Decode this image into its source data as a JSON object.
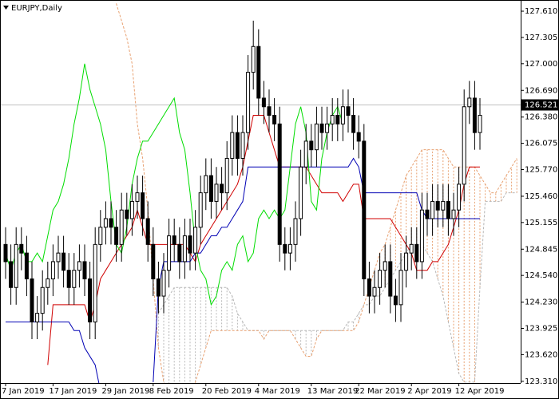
{
  "chart_data": {
    "type": "candlestick",
    "title": "EURJPY,Daily",
    "ylim": [
      123.29,
      127.74
    ],
    "yticks": [
      {
        "value": 127.61,
        "label": "127.610"
      },
      127.305,
      {
        "value": 127.0,
        "label": "127.000"
      },
      {
        "value": 126.69,
        "label": "126.690"
      },
      {
        "value": 126.38,
        "label": "126.380"
      },
      126.075,
      {
        "value": 125.77,
        "label": "125.770"
      },
      {
        "value": 125.46,
        "label": "125.460"
      },
      125.155,
      124.845,
      {
        "value": 124.54,
        "label": "124.540"
      },
      {
        "value": 124.23,
        "label": "124.230"
      },
      123.925,
      {
        "value": 123.62,
        "label": "123.620"
      },
      {
        "value": 123.31,
        "label": "123.310"
      }
    ],
    "xticks": [
      {
        "value": 0,
        "label": "7 Jan 2019"
      },
      {
        "value": 9,
        "label": "17 Jan 2019"
      },
      {
        "value": 19,
        "label": "29 Jan 2019"
      },
      {
        "value": 28,
        "label": "8 Feb 2019"
      },
      {
        "value": 38,
        "label": "20 Feb 2019"
      },
      {
        "value": 48,
        "label": "4 Mar 2019"
      },
      {
        "value": 58,
        "label": "13 Mar 2019"
      },
      {
        "value": 67,
        "label": "22 Mar 2019"
      },
      {
        "value": 77,
        "label": "2 Apr 2019"
      },
      {
        "value": 86,
        "label": "12 Apr 2019"
      }
    ],
    "last_price": 126.521,
    "color_up": "#ffffff",
    "color_down": "#000000",
    "candles": {
      "open": [
        124.9,
        124.7,
        124.4,
        124.9,
        124.8,
        124.5,
        124.0,
        124.1,
        124.4,
        124.5,
        124.7,
        124.8,
        124.6,
        124.4,
        124.6,
        124.7,
        124.5,
        124.0,
        124.9,
        125.1,
        125.2,
        125.1,
        124.9,
        125.3,
        125.2,
        125.4,
        125.5,
        125.2,
        124.9,
        124.5,
        124.3,
        124.6,
        125.0,
        124.9,
        124.7,
        125.0,
        124.8,
        125.1,
        125.5,
        125.7,
        125.4,
        125.6,
        125.5,
        125.9,
        126.2,
        125.9,
        126.2,
        126.9,
        127.2,
        126.6,
        126.5,
        126.4,
        126.3,
        124.9,
        124.8,
        124.9,
        125.2,
        125.8,
        126.1,
        126.0,
        126.3,
        126.2,
        126.3,
        126.4,
        126.3,
        126.5,
        126.4,
        126.2,
        126.1,
        124.5,
        124.3,
        124.4,
        124.6,
        124.7,
        124.3,
        124.2,
        124.6,
        124.8,
        124.9,
        124.7,
        125.3,
        125.2,
        125.4,
        125.3,
        125.4,
        125.2,
        125.3,
        125.6,
        126.5,
        126.6,
        126.2
      ],
      "high": [
        125.1,
        124.9,
        125.1,
        125.1,
        125.0,
        124.7,
        124.3,
        124.6,
        124.7,
        124.9,
        125.0,
        125.0,
        124.8,
        124.8,
        124.9,
        124.9,
        124.7,
        125.1,
        125.3,
        125.4,
        125.4,
        125.3,
        125.5,
        125.5,
        125.6,
        125.7,
        125.7,
        125.4,
        125.1,
        124.7,
        124.8,
        125.2,
        125.2,
        125.1,
        125.2,
        125.2,
        125.3,
        125.7,
        125.9,
        125.9,
        125.8,
        125.8,
        126.1,
        126.4,
        126.4,
        126.4,
        127.1,
        127.5,
        127.4,
        126.8,
        126.7,
        126.6,
        126.5,
        125.1,
        125.1,
        125.4,
        126.0,
        126.3,
        126.3,
        126.5,
        126.5,
        126.5,
        126.6,
        126.6,
        126.7,
        126.7,
        126.6,
        126.4,
        126.3,
        124.7,
        124.6,
        124.8,
        124.9,
        124.9,
        124.5,
        124.8,
        125.0,
        125.1,
        125.1,
        125.5,
        125.5,
        125.6,
        125.6,
        125.6,
        125.6,
        125.5,
        125.8,
        126.7,
        126.8,
        126.8,
        126.6
      ],
      "low": [
        124.5,
        124.2,
        124.2,
        124.6,
        124.3,
        123.8,
        123.8,
        123.9,
        124.2,
        124.3,
        124.5,
        124.4,
        124.2,
        124.2,
        124.4,
        124.3,
        123.8,
        123.8,
        124.7,
        124.9,
        124.9,
        124.7,
        124.7,
        125.0,
        125.0,
        125.2,
        125.0,
        124.7,
        124.3,
        124.1,
        124.1,
        124.4,
        124.7,
        124.5,
        124.5,
        124.6,
        124.6,
        124.9,
        125.3,
        125.2,
        125.2,
        125.3,
        125.3,
        125.7,
        125.7,
        125.7,
        126.0,
        126.7,
        126.4,
        126.3,
        126.2,
        126.1,
        124.7,
        124.6,
        124.6,
        124.7,
        125.0,
        125.6,
        125.8,
        125.8,
        126.0,
        126.0,
        126.1,
        126.1,
        126.1,
        126.2,
        126.0,
        125.9,
        124.3,
        124.1,
        124.1,
        124.2,
        124.4,
        124.1,
        124.0,
        124.0,
        124.4,
        124.6,
        124.5,
        124.5,
        125.0,
        125.0,
        125.1,
        125.1,
        125.0,
        125.0,
        125.1,
        125.4,
        126.3,
        126.0,
        126.0
      ],
      "close": [
        124.7,
        124.4,
        124.9,
        124.8,
        124.5,
        124.0,
        124.1,
        124.4,
        124.5,
        124.7,
        124.8,
        124.6,
        124.4,
        124.6,
        124.7,
        124.5,
        124.0,
        124.9,
        125.1,
        125.2,
        125.1,
        124.9,
        125.3,
        125.2,
        125.4,
        125.5,
        125.2,
        124.9,
        124.5,
        124.3,
        124.6,
        125.0,
        124.9,
        124.7,
        125.0,
        124.8,
        125.1,
        125.5,
        125.7,
        125.4,
        125.6,
        125.5,
        125.9,
        126.2,
        125.9,
        126.2,
        126.9,
        127.2,
        126.6,
        126.5,
        126.4,
        126.3,
        124.9,
        124.8,
        124.9,
        125.2,
        125.8,
        126.1,
        126.0,
        126.3,
        126.2,
        126.3,
        126.4,
        126.3,
        126.5,
        126.4,
        126.2,
        126.1,
        124.5,
        124.3,
        124.4,
        124.6,
        124.7,
        124.3,
        124.2,
        124.6,
        124.8,
        124.9,
        124.7,
        125.3,
        125.2,
        125.4,
        125.3,
        125.4,
        125.2,
        125.3,
        125.6,
        126.5,
        126.6,
        126.2,
        126.4
      ]
    },
    "cloud": {
      "span_a": {
        "color": "#b8b8b8",
        "values": [
          null,
          null,
          null,
          null,
          null,
          null,
          null,
          null,
          null,
          null,
          null,
          null,
          null,
          null,
          null,
          null,
          null,
          null,
          null,
          null,
          null,
          null,
          null,
          null,
          null,
          null,
          null,
          null,
          null,
          124.1,
          124.2,
          124.3,
          124.4,
          124.4,
          124.4,
          124.4,
          124.4,
          124.4,
          124.4,
          124.4,
          124.4,
          124.4,
          124.4,
          124.3,
          124.1,
          124.0,
          123.9,
          123.9,
          123.9,
          123.9,
          123.9,
          123.9,
          123.9,
          123.9,
          123.9,
          123.9,
          123.9,
          123.9,
          123.9,
          123.9,
          123.9,
          123.9,
          123.9,
          123.9,
          123.9,
          124.0,
          124.0,
          124.1,
          124.2,
          124.2,
          124.3,
          124.3,
          124.4,
          124.5,
          124.6,
          124.7,
          124.8,
          124.9,
          124.9,
          124.9,
          124.8,
          124.7,
          124.5,
          124.3,
          124.0,
          123.7,
          123.4,
          123.3,
          123.3,
          123.3,
          124.4,
          125.4,
          125.4,
          125.4,
          125.4,
          125.5,
          125.5,
          125.5
        ]
      },
      "span_b": {
        "color": "#e8a070",
        "values": [
          null,
          null,
          null,
          null,
          null,
          null,
          null,
          null,
          null,
          null,
          null,
          null,
          null,
          null,
          null,
          null,
          null,
          null,
          null,
          null,
          null,
          127.7,
          127.5,
          127.3,
          127.0,
          126.3,
          125.9,
          125.3,
          124.5,
          123.7,
          123.3,
          123.2,
          123.2,
          123.2,
          123.2,
          123.2,
          123.3,
          123.5,
          123.7,
          123.9,
          123.9,
          123.9,
          123.9,
          123.9,
          123.9,
          123.9,
          123.9,
          123.9,
          123.9,
          123.8,
          123.9,
          123.9,
          123.9,
          123.9,
          123.9,
          123.8,
          123.7,
          123.6,
          123.6,
          123.8,
          123.9,
          123.9,
          123.9,
          123.9,
          123.9,
          123.9,
          123.9,
          124.0,
          124.2,
          124.4,
          124.6,
          124.8,
          124.9,
          125.1,
          125.3,
          125.5,
          125.7,
          125.8,
          125.9,
          126.0,
          126.0,
          126.0,
          126.0,
          126.0,
          125.9,
          125.8,
          125.8,
          125.8,
          125.8,
          125.8,
          125.7,
          125.6,
          125.5,
          125.5,
          125.6,
          125.7,
          125.8,
          125.9
        ]
      }
    },
    "lines": [
      {
        "color": "#d00000",
        "values": [
          null,
          null,
          null,
          null,
          null,
          null,
          null,
          null,
          123.5,
          124.2,
          124.2,
          124.2,
          124.2,
          124.2,
          124.2,
          124.2,
          124.0,
          124.2,
          124.5,
          124.6,
          124.7,
          124.8,
          124.9,
          125.0,
          125.1,
          125.3,
          125.1,
          124.9,
          124.9,
          124.9,
          124.9,
          124.9,
          124.9,
          124.9,
          124.9,
          124.8,
          124.7,
          124.9,
          125.0,
          125.1,
          125.2,
          125.3,
          125.4,
          125.5,
          125.6,
          125.8,
          126.1,
          126.4,
          126.4,
          126.4,
          126.2,
          126.0,
          125.8,
          125.8,
          125.8,
          125.8,
          125.8,
          125.8,
          125.7,
          125.6,
          125.5,
          125.5,
          125.5,
          125.5,
          125.4,
          125.5,
          125.6,
          125.6,
          125.2,
          125.2,
          125.2,
          125.2,
          125.2,
          125.2,
          125.1,
          125.0,
          124.9,
          124.8,
          124.6,
          124.6,
          124.6,
          124.7,
          124.7,
          124.8,
          124.9,
          125.1,
          125.3,
          125.6,
          125.8,
          125.8,
          125.8
        ]
      },
      {
        "color": "#0000b4",
        "values": [
          124.0,
          124.0,
          124.0,
          124.0,
          124.0,
          124.0,
          124.0,
          124.0,
          124.0,
          124.0,
          124.0,
          124.0,
          124.0,
          123.9,
          123.9,
          123.7,
          123.6,
          123.5,
          123.2,
          null,
          null,
          null,
          null,
          null,
          null,
          null,
          null,
          null,
          123.3,
          124.4,
          124.7,
          124.7,
          124.7,
          124.7,
          124.7,
          124.7,
          124.8,
          124.8,
          124.9,
          125.0,
          125.0,
          125.1,
          125.1,
          125.2,
          125.3,
          125.4,
          125.8,
          125.8,
          125.8,
          125.8,
          125.8,
          125.8,
          125.8,
          125.8,
          125.8,
          125.8,
          125.8,
          125.8,
          125.8,
          125.8,
          125.8,
          125.8,
          125.8,
          125.8,
          125.8,
          125.8,
          125.9,
          125.8,
          125.5,
          125.5,
          125.5,
          125.5,
          125.5,
          125.5,
          125.5,
          125.5,
          125.5,
          125.5,
          125.5,
          125.3,
          125.2,
          125.2,
          125.2,
          125.2,
          125.2,
          125.2,
          125.2,
          125.2,
          125.2,
          125.2,
          125.2
        ]
      },
      {
        "color": "#00dd00",
        "values": [
          124.8,
          124.6,
          124.8,
          124.9,
          124.7,
          124.7,
          124.8,
          124.7,
          125.0,
          125.3,
          125.4,
          125.6,
          125.9,
          126.3,
          126.6,
          127.0,
          126.7,
          126.5,
          126.3,
          126.0,
          125.4,
          124.9,
          124.8,
          125.1,
          125.6,
          125.9,
          126.1,
          126.1,
          126.2,
          126.3,
          126.4,
          126.5,
          126.6,
          126.2,
          126.0,
          125.5,
          124.9,
          124.6,
          124.5,
          124.2,
          124.3,
          124.6,
          124.7,
          124.6,
          124.9,
          125.0,
          124.7,
          124.8,
          125.2,
          125.3,
          125.2,
          125.3,
          125.2,
          125.3,
          125.8,
          126.3,
          126.5,
          126.2,
          125.4,
          125.3,
          125.9,
          126.2,
          126.4,
          126.5,
          126.3
        ]
      }
    ]
  }
}
